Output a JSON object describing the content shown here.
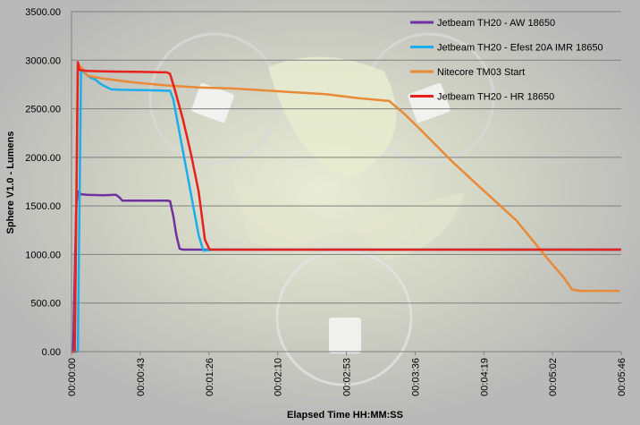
{
  "chart_data": {
    "type": "line",
    "xlabel": "Elapsed Time HH:MM:SS",
    "ylabel": "Sphere V1.0 - Lumens",
    "ylim": [
      0,
      3500
    ],
    "xlim_seconds": [
      0,
      346
    ],
    "grid": "horizontal",
    "legend_position": "top-right",
    "y_ticks": [
      "0.00",
      "500.00",
      "1000.00",
      "1500.00",
      "2000.00",
      "2500.00",
      "3000.00",
      "3500.00"
    ],
    "x_ticks": [
      "00:00:00",
      "00:00:43",
      "00:01:26",
      "00:02:10",
      "00:02:53",
      "00:03:36",
      "00:04:19",
      "00:05:02",
      "00:05:46"
    ],
    "series": [
      {
        "name": "Jetbeam TH20 - AW 18650",
        "color": "#7030a0",
        "points": [
          [
            0,
            0
          ],
          [
            1,
            0
          ],
          [
            3,
            1500
          ],
          [
            4,
            1650
          ],
          [
            6,
            1620
          ],
          [
            10,
            1615
          ],
          [
            20,
            1610
          ],
          [
            28,
            1615
          ],
          [
            30,
            1590
          ],
          [
            32,
            1555
          ],
          [
            50,
            1555
          ],
          [
            60,
            1555
          ],
          [
            62,
            1550
          ],
          [
            64,
            1400
          ],
          [
            66,
            1200
          ],
          [
            68,
            1060
          ],
          [
            70,
            1050
          ],
          [
            100,
            1050
          ],
          [
            200,
            1050
          ],
          [
            300,
            1050
          ],
          [
            346,
            1050
          ]
        ]
      },
      {
        "name": "Jetbeam TH20 - Efest 20A IMR 18650",
        "color": "#1cadec",
        "points": [
          [
            0,
            0
          ],
          [
            4,
            0
          ],
          [
            5,
            1500
          ],
          [
            6,
            2900
          ],
          [
            8,
            2870
          ],
          [
            12,
            2820
          ],
          [
            15,
            2800
          ],
          [
            18,
            2760
          ],
          [
            20,
            2740
          ],
          [
            25,
            2700
          ],
          [
            32,
            2695
          ],
          [
            50,
            2690
          ],
          [
            62,
            2685
          ],
          [
            64,
            2600
          ],
          [
            80,
            1200
          ],
          [
            83,
            1040
          ],
          [
            90,
            1050
          ],
          [
            200,
            1050
          ],
          [
            346,
            1050
          ]
        ]
      },
      {
        "name": "Nitecore TM03 Start",
        "color": "#e88a37",
        "points": [
          [
            0,
            0
          ],
          [
            2,
            0
          ],
          [
            4,
            2960
          ],
          [
            6,
            2930
          ],
          [
            10,
            2840
          ],
          [
            20,
            2810
          ],
          [
            40,
            2770
          ],
          [
            60,
            2740
          ],
          [
            80,
            2720
          ],
          [
            100,
            2710
          ],
          [
            120,
            2690
          ],
          [
            140,
            2670
          ],
          [
            160,
            2650
          ],
          [
            180,
            2610
          ],
          [
            200,
            2580
          ],
          [
            210,
            2440
          ],
          [
            220,
            2280
          ],
          [
            240,
            1950
          ],
          [
            260,
            1650
          ],
          [
            280,
            1350
          ],
          [
            290,
            1150
          ],
          [
            300,
            950
          ],
          [
            310,
            760
          ],
          [
            315,
            640
          ],
          [
            320,
            625
          ],
          [
            345,
            625
          ]
        ]
      },
      {
        "name": "Jetbeam TH20 - HR 18650",
        "color": "#e8211d",
        "points": [
          [
            0,
            0
          ],
          [
            2,
            0
          ],
          [
            4,
            2980
          ],
          [
            5,
            2900
          ],
          [
            10,
            2890
          ],
          [
            20,
            2885
          ],
          [
            40,
            2880
          ],
          [
            60,
            2875
          ],
          [
            62,
            2860
          ],
          [
            65,
            2700
          ],
          [
            70,
            2400
          ],
          [
            75,
            2050
          ],
          [
            80,
            1650
          ],
          [
            84,
            1150
          ],
          [
            87,
            1050
          ],
          [
            100,
            1050
          ],
          [
            200,
            1050
          ],
          [
            346,
            1050
          ]
        ]
      }
    ]
  }
}
